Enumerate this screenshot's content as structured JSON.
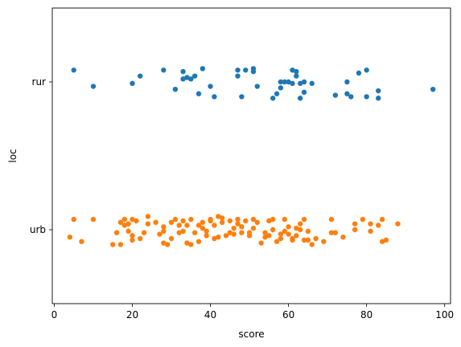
{
  "chart_data": {
    "type": "scatter",
    "title": "",
    "xlabel": "score",
    "ylabel": "loc",
    "xlim": [
      -0.5,
      101.5
    ],
    "xticks": [
      0,
      20,
      40,
      60,
      80,
      100
    ],
    "categories": [
      "rur",
      "urb"
    ],
    "grid": false,
    "legend": "none",
    "series": [
      {
        "category": "rur",
        "color": "#1f77b4",
        "points": [
          [
            5,
            -0.08
          ],
          [
            10,
            0.03
          ],
          [
            20,
            0.01
          ],
          [
            22,
            -0.04
          ],
          [
            28,
            -0.08
          ],
          [
            31,
            0.05
          ],
          [
            33,
            -0.07
          ],
          [
            33,
            -0.02
          ],
          [
            34,
            -0.03
          ],
          [
            35,
            -0.02
          ],
          [
            36,
            -0.04
          ],
          [
            37,
            0.08
          ],
          [
            38,
            -0.09
          ],
          [
            40,
            0.03
          ],
          [
            41,
            0.1
          ],
          [
            47,
            -0.04
          ],
          [
            47,
            -0.08
          ],
          [
            48,
            0.1
          ],
          [
            49,
            -0.08
          ],
          [
            51,
            -0.07
          ],
          [
            51,
            -0.09
          ],
          [
            52,
            0.03
          ],
          [
            56,
            0.11
          ],
          [
            57,
            0.08
          ],
          [
            58,
            0.04
          ],
          [
            58,
            0.0
          ],
          [
            59,
            0.0
          ],
          [
            60,
            0.0
          ],
          [
            61,
            0.01
          ],
          [
            61,
            -0.08
          ],
          [
            62,
            -0.04
          ],
          [
            62,
            -0.07
          ],
          [
            63,
            0.11
          ],
          [
            63,
            0.01
          ],
          [
            64,
            0.0
          ],
          [
            64,
            0.07
          ],
          [
            66,
            0.01
          ],
          [
            72,
            0.09
          ],
          [
            75,
            0.08
          ],
          [
            75,
            0.0
          ],
          [
            76,
            0.1
          ],
          [
            78,
            -0.06
          ],
          [
            80,
            0.1
          ],
          [
            80,
            -0.08
          ],
          [
            83,
            0.11
          ],
          [
            83,
            0.06
          ],
          [
            97,
            0.05
          ]
        ]
      },
      {
        "category": "urb",
        "color": "#ff7f0e",
        "points": [
          [
            4,
            0.05
          ],
          [
            5,
            -0.07
          ],
          [
            7,
            0.08
          ],
          [
            10,
            -0.07
          ],
          [
            15,
            0.1
          ],
          [
            16,
            0.02
          ],
          [
            17,
            0.1
          ],
          [
            17,
            -0.05
          ],
          [
            18,
            -0.03
          ],
          [
            18,
            -0.07
          ],
          [
            19,
            -0.04
          ],
          [
            19,
            0.01
          ],
          [
            20,
            -0.07
          ],
          [
            20,
            0.07
          ],
          [
            20,
            0.04
          ],
          [
            21,
            -0.06
          ],
          [
            22,
            0.06
          ],
          [
            23,
            0.02
          ],
          [
            24,
            -0.04
          ],
          [
            24,
            -0.09
          ],
          [
            26,
            -0.05
          ],
          [
            27,
            0.03
          ],
          [
            28,
            -0.02
          ],
          [
            28,
            0.01
          ],
          [
            28,
            0.09
          ],
          [
            29,
            0.1
          ],
          [
            30,
            0.06
          ],
          [
            30,
            -0.05
          ],
          [
            31,
            -0.07
          ],
          [
            32,
            0.02
          ],
          [
            32,
            -0.03
          ],
          [
            33,
            0.01
          ],
          [
            33,
            -0.06
          ],
          [
            34,
            -0.03
          ],
          [
            34,
            0.09
          ],
          [
            35,
            0.1
          ],
          [
            35,
            -0.07
          ],
          [
            36,
            0.02
          ],
          [
            37,
            0.08
          ],
          [
            37,
            -0.03
          ],
          [
            38,
            -0.01
          ],
          [
            38,
            -0.05
          ],
          [
            39,
            0.04
          ],
          [
            39,
            0.01
          ],
          [
            40,
            -0.06
          ],
          [
            40,
            -0.07
          ],
          [
            41,
            -0.03
          ],
          [
            41,
            0.06
          ],
          [
            42,
            0.05
          ],
          [
            42,
            -0.09
          ],
          [
            43,
            -0.08
          ],
          [
            43,
            -0.05
          ],
          [
            44,
            0.04
          ],
          [
            45,
            0.02
          ],
          [
            45,
            -0.06
          ],
          [
            46,
            -0.01
          ],
          [
            46,
            0.03
          ],
          [
            47,
            -0.07
          ],
          [
            47,
            -0.04
          ],
          [
            48,
            -0.02
          ],
          [
            48,
            0.02
          ],
          [
            49,
            -0.06
          ],
          [
            50,
            0.04
          ],
          [
            50,
            0.02
          ],
          [
            51,
            -0.01
          ],
          [
            51,
            -0.07
          ],
          [
            52,
            -0.05
          ],
          [
            53,
            0.09
          ],
          [
            54,
            0.05
          ],
          [
            54,
            0.02
          ],
          [
            55,
            -0.06
          ],
          [
            55,
            0.04
          ],
          [
            56,
            0.0
          ],
          [
            56,
            -0.07
          ],
          [
            57,
            0.08
          ],
          [
            58,
            0.06
          ],
          [
            58,
            0.03
          ],
          [
            59,
            0.01
          ],
          [
            59,
            -0.07
          ],
          [
            60,
            -0.02
          ],
          [
            60,
            0.03
          ],
          [
            61,
            0.07
          ],
          [
            61,
            0.06
          ],
          [
            62,
            -0.01
          ],
          [
            62,
            0.04
          ],
          [
            63,
            -0.04
          ],
          [
            63,
            0.0
          ],
          [
            64,
            0.07
          ],
          [
            64,
            -0.07
          ],
          [
            65,
            0.01
          ],
          [
            65,
            0.07
          ],
          [
            66,
            0.1
          ],
          [
            67,
            0.06
          ],
          [
            69,
            0.08
          ],
          [
            71,
            -0.07
          ],
          [
            71,
            0.02
          ],
          [
            72,
            0.02
          ],
          [
            74,
            0.05
          ],
          [
            77,
            0.0
          ],
          [
            77,
            -0.04
          ],
          [
            79,
            -0.07
          ],
          [
            81,
            -0.04
          ],
          [
            81,
            0.01
          ],
          [
            83,
            -0.03
          ],
          [
            84,
            0.08
          ],
          [
            84,
            -0.07
          ],
          [
            85,
            0.07
          ],
          [
            88,
            -0.04
          ]
        ]
      }
    ]
  }
}
